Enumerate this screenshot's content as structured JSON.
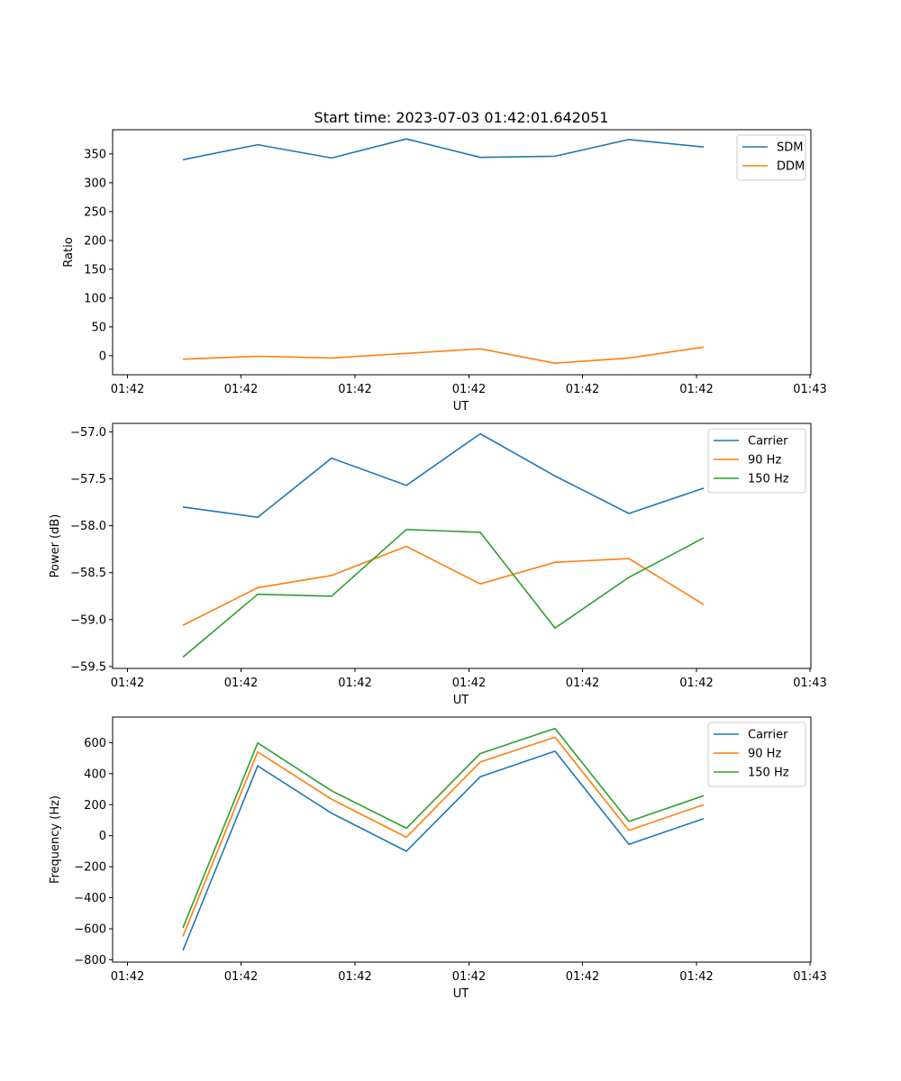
{
  "chart_data": [
    {
      "type": "line",
      "title": "Start time: 2023-07-03 01:42:01.642051",
      "xlabel": "UT",
      "ylabel": "Ratio",
      "xticks": [
        "01:42",
        "01:42",
        "01:42",
        "01:42",
        "01:42",
        "01:42",
        "01:43"
      ],
      "yticks": [
        0,
        50,
        100,
        150,
        200,
        250,
        300,
        350
      ],
      "ylim": [
        -33,
        392
      ],
      "legend_loc": "upper right",
      "series": [
        {
          "name": "SDM",
          "color": "#1f77b4",
          "values": [
            340,
            366,
            343,
            376,
            344,
            346,
            375,
            362
          ]
        },
        {
          "name": "DDM",
          "color": "#ff7f0e",
          "values": [
            -6,
            -1,
            -4,
            4,
            12,
            -13,
            -4,
            15
          ]
        }
      ]
    },
    {
      "type": "line",
      "title": "",
      "xlabel": "UT",
      "ylabel": "Power (dB)",
      "xticks": [
        "01:42",
        "01:42",
        "01:42",
        "01:42",
        "01:42",
        "01:42",
        "01:43"
      ],
      "yticks": [
        "−59.5",
        "−59.0",
        "−58.5",
        "−58.0",
        "−57.5",
        "−57.0"
      ],
      "ytick_values": [
        -59.5,
        -59.0,
        -58.5,
        -58.0,
        -57.5,
        -57.0
      ],
      "ylim": [
        -59.52,
        -56.91
      ],
      "legend_loc": "upper right",
      "series": [
        {
          "name": "Carrier",
          "color": "#1f77b4",
          "values": [
            -57.8,
            -57.91,
            -57.28,
            -57.57,
            -57.02,
            -57.47,
            -57.87,
            -57.6
          ]
        },
        {
          "name": "90 Hz",
          "color": "#ff7f0e",
          "values": [
            -59.06,
            -58.66,
            -58.53,
            -58.22,
            -58.62,
            -58.39,
            -58.35,
            -58.84
          ]
        },
        {
          "name": "150 Hz",
          "color": "#2ca02c",
          "values": [
            -59.4,
            -58.73,
            -58.75,
            -58.04,
            -58.07,
            -59.09,
            -58.55,
            -58.13
          ]
        }
      ]
    },
    {
      "type": "line",
      "title": "",
      "xlabel": "UT",
      "ylabel": "Frequency (Hz)",
      "xticks": [
        "01:42",
        "01:42",
        "01:42",
        "01:42",
        "01:42",
        "01:42",
        "01:43"
      ],
      "yticks": [
        "−800",
        "−600",
        "−400",
        "−200",
        "0",
        "200",
        "400",
        "600"
      ],
      "ytick_values": [
        -800,
        -600,
        -400,
        -200,
        0,
        200,
        400,
        600
      ],
      "ylim": [
        -815,
        765
      ],
      "legend_loc": "upper right",
      "series": [
        {
          "name": "Carrier",
          "color": "#1f77b4",
          "values": [
            -740,
            450,
            145,
            -100,
            380,
            545,
            -55,
            110
          ]
        },
        {
          "name": "90 Hz",
          "color": "#ff7f0e",
          "values": [
            -650,
            540,
            235,
            -10,
            475,
            635,
            35,
            200
          ]
        },
        {
          "name": "150 Hz",
          "color": "#2ca02c",
          "values": [
            -595,
            598,
            290,
            48,
            530,
            692,
            92,
            258
          ]
        }
      ]
    }
  ]
}
